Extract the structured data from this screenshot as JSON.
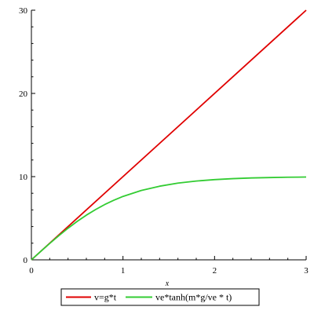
{
  "chart_data": {
    "type": "line",
    "title": "",
    "xlabel": "x",
    "ylabel": "",
    "xlim": [
      0,
      3
    ],
    "ylim": [
      0,
      30
    ],
    "x_ticks": [
      0,
      1,
      2,
      3
    ],
    "y_ticks": [
      0,
      10,
      20,
      30
    ],
    "x_tick_labels": [
      "0",
      "1",
      "2",
      "3"
    ],
    "y_tick_labels": [
      "0",
      "10",
      "20",
      "30"
    ],
    "grid": false,
    "legend_position": "bottom",
    "series": [
      {
        "name": "v=g*t",
        "color": "#e00000",
        "x": [
          0,
          3
        ],
        "y": [
          0,
          30
        ]
      },
      {
        "name": "ve*tanh(m*g/ve * t)",
        "color": "#33cc33",
        "x": [
          0,
          0.1,
          0.2,
          0.3,
          0.4,
          0.5,
          0.6,
          0.7,
          0.8,
          0.9,
          1.0,
          1.2,
          1.4,
          1.6,
          1.8,
          2.0,
          2.2,
          2.4,
          2.6,
          2.8,
          3.0
        ],
        "y": [
          0,
          1.0,
          1.97,
          2.91,
          3.8,
          4.62,
          5.37,
          6.04,
          6.64,
          7.16,
          7.62,
          8.34,
          8.85,
          9.22,
          9.47,
          9.64,
          9.76,
          9.84,
          9.89,
          9.93,
          9.95
        ]
      }
    ]
  }
}
